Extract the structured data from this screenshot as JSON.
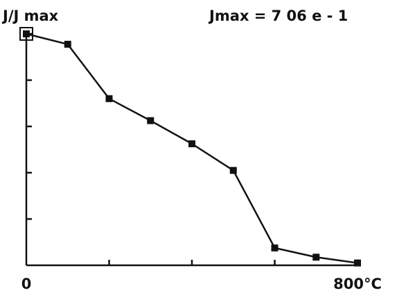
{
  "chart_data": {
    "type": "line",
    "title": "",
    "ylabel": "J/J max",
    "annotation": "Jmax = 7 06 e - 1",
    "xlabel": "",
    "x_tick_labels": [
      "0",
      "800°C"
    ],
    "x": [
      0,
      100,
      200,
      300,
      400,
      500,
      600,
      700,
      800
    ],
    "xlim": [
      0,
      800
    ],
    "ylim": [
      0,
      1
    ],
    "y_ticks": [
      0,
      0.2,
      0.4,
      0.6,
      0.8,
      1.0
    ],
    "grid": false,
    "series": [
      {
        "values": [
          1.0,
          0.955,
          0.72,
          0.625,
          0.525,
          0.41,
          0.075,
          0.035,
          0.01
        ],
        "marker": "square",
        "color": "#111111"
      }
    ],
    "first_point_marker": "open-square-outline"
  }
}
